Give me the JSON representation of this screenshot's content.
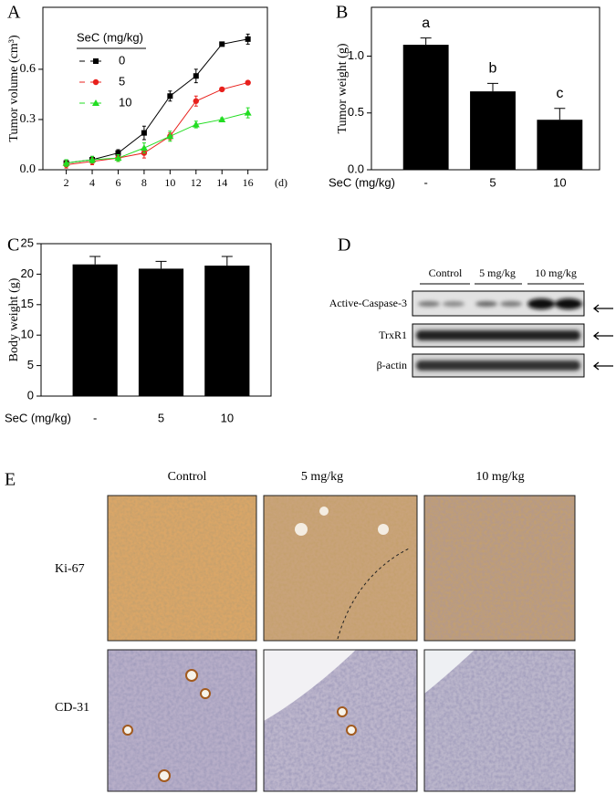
{
  "chart_data": [
    {
      "type": "line",
      "panel": "A",
      "ylabel": "Tumor volume (cm³)",
      "xlabel": "(d)",
      "x": [
        2,
        4,
        6,
        8,
        10,
        12,
        14,
        16
      ],
      "xlim": [
        0.2,
        17.5
      ],
      "xticks": [
        2,
        4,
        6,
        8,
        10,
        12,
        14,
        16
      ],
      "ylim": [
        0,
        0.97
      ],
      "yticks": [
        {
          "value": 0,
          "label": "0.0"
        },
        0.3,
        0.6
      ],
      "legend_title": "SeC (mg/kg)",
      "legend": "upper left",
      "series": [
        {
          "name": "0",
          "color": "#000000",
          "marker": "square",
          "values": [
            0.04,
            0.06,
            0.1,
            0.22,
            0.44,
            0.56,
            0.75,
            0.78
          ],
          "errors": [
            0.02,
            0.02,
            0.02,
            0.04,
            0.03,
            0.04,
            0.01,
            0.03
          ]
        },
        {
          "name": "5",
          "color": "#e8201c",
          "marker": "circle",
          "values": [
            0.03,
            0.05,
            0.07,
            0.1,
            0.2,
            0.41,
            0.48,
            0.52
          ],
          "errors": [
            0.02,
            0.02,
            0.02,
            0.03,
            0.02,
            0.03,
            0.01,
            0.01
          ]
        },
        {
          "name": "10",
          "color": "#22dd22",
          "marker": "triangle",
          "values": [
            0.04,
            0.06,
            0.07,
            0.13,
            0.2,
            0.27,
            0.3,
            0.34
          ],
          "errors": [
            0.02,
            0.02,
            0.02,
            0.03,
            0.03,
            0.02,
            0.01,
            0.03
          ]
        }
      ]
    },
    {
      "type": "bar",
      "panel": "B",
      "ylabel": "Tumor weight (g)",
      "xlabel": "SeC (mg/kg)",
      "categories": [
        "-",
        "5",
        "10"
      ],
      "values": [
        1.1,
        0.69,
        0.44
      ],
      "errors": [
        0.06,
        0.07,
        0.1
      ],
      "annotations": [
        "a",
        "b",
        "c"
      ],
      "color": "#000000",
      "ylim": [
        0,
        1.43
      ],
      "yticks": [
        {
          "value": 0,
          "label": "0.0"
        },
        0.5,
        {
          "value": 1,
          "label": "1.0"
        }
      ]
    },
    {
      "type": "bar",
      "panel": "C",
      "ylabel": "Body weight (g)",
      "xlabel": "SeC (mg/kg)",
      "categories": [
        "-",
        "5",
        "10"
      ],
      "values": [
        21.6,
        20.9,
        21.4
      ],
      "errors": [
        1.3,
        1.2,
        1.5
      ],
      "color": "#000000",
      "ylim": [
        0,
        25
      ],
      "yticks": [
        0,
        5,
        10,
        15,
        20,
        25
      ]
    }
  ],
  "western_blot": {
    "panel": "D",
    "lanes": [
      "Control",
      "5 mg/kg",
      "10 mg/kg"
    ],
    "rows": [
      "Active-Caspase-3",
      "TrxR1",
      "β-actin"
    ]
  },
  "histology": {
    "panel": "E",
    "columns": [
      "Control",
      "5 mg/kg",
      "10 mg/kg"
    ],
    "rows": [
      "Ki-67",
      "CD-31"
    ]
  }
}
